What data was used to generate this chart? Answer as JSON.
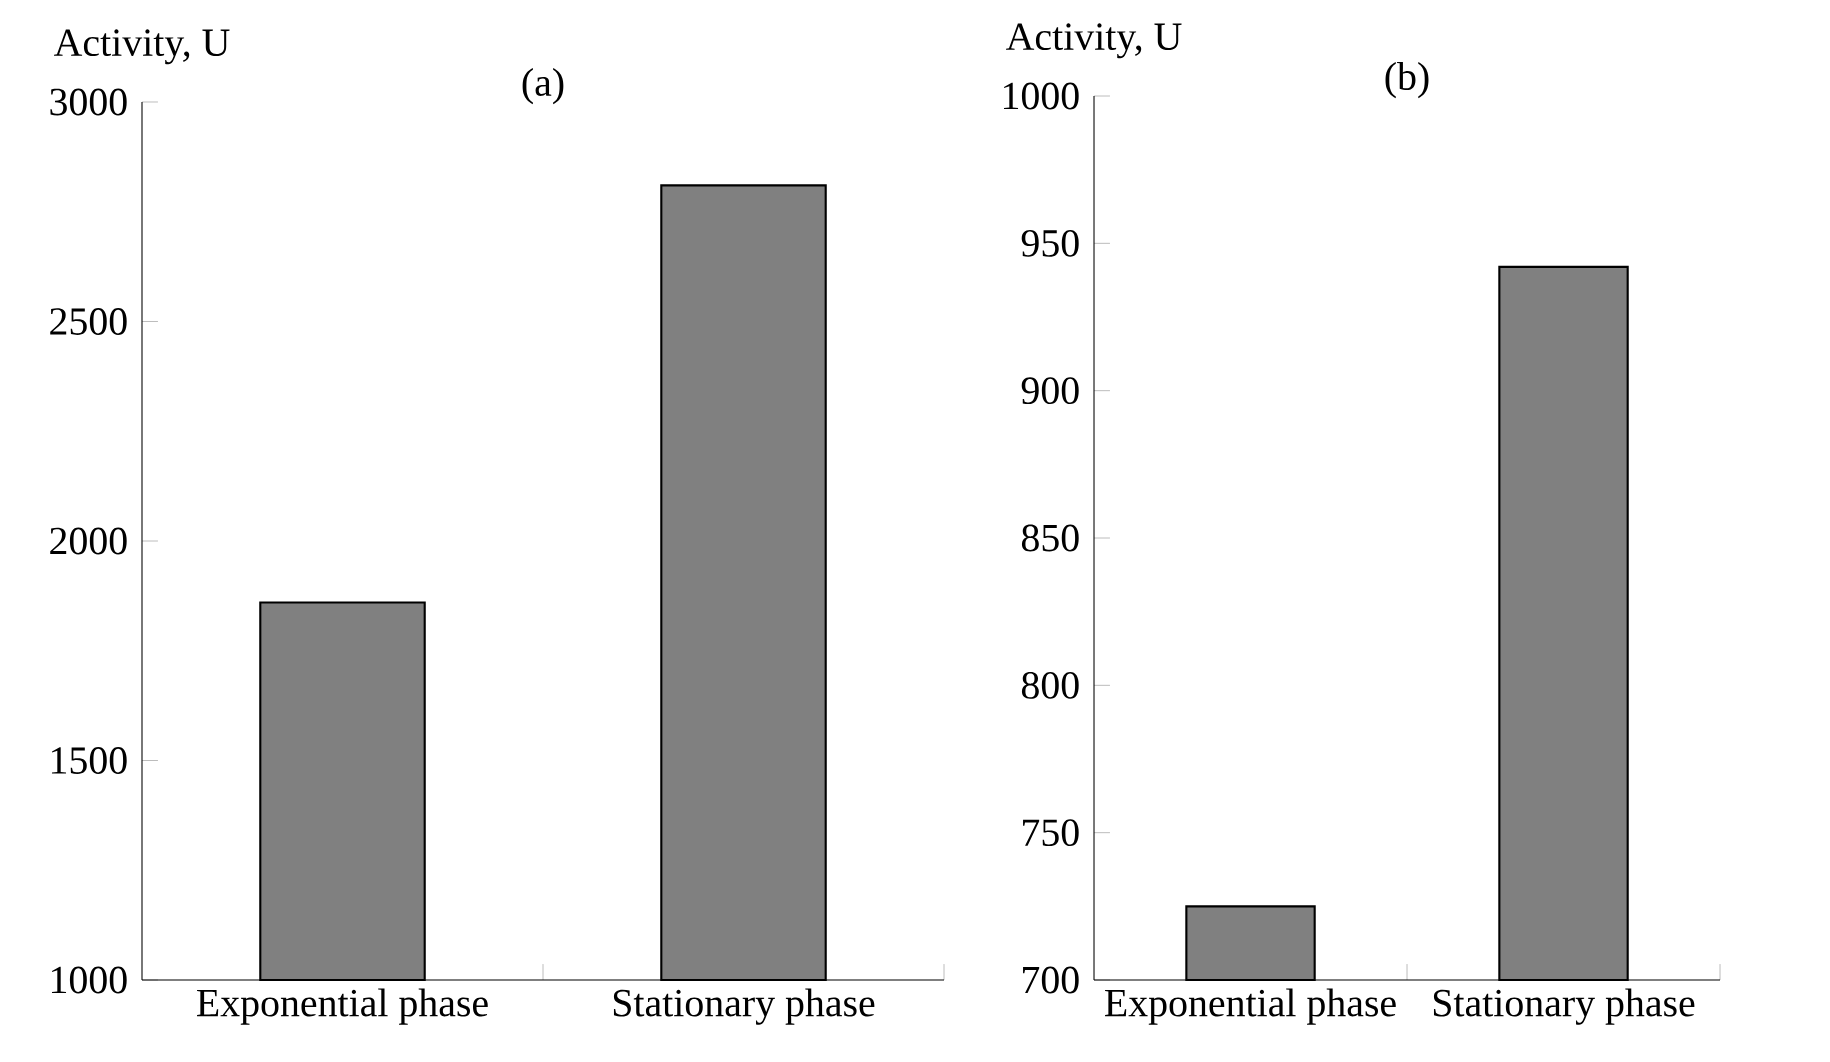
{
  "chart_data": [
    {
      "type": "bar",
      "title": "(a)",
      "ylabel": "Activity, U",
      "categories": [
        "Exponential phase",
        "Stationary phase"
      ],
      "values": [
        1860,
        2810
      ],
      "color": "#808080",
      "ylim": [
        1000,
        3000
      ],
      "yticks": [
        1000,
        1500,
        2000,
        2500,
        3000
      ]
    },
    {
      "type": "bar",
      "title": "(b)",
      "ylabel": "Activity, U",
      "categories": [
        "Exponential phase",
        "Stationary phase"
      ],
      "values": [
        725,
        942
      ],
      "color": "#808080",
      "ylim": [
        700,
        1000
      ],
      "yticks": [
        700,
        750,
        800,
        850,
        900,
        950,
        1000
      ]
    }
  ]
}
